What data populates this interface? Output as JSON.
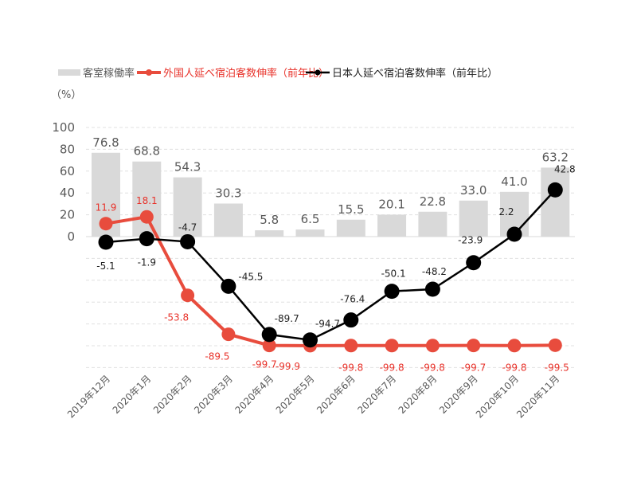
{
  "chart_data": {
    "type": "bar+line",
    "unit_label": "（%）",
    "categories": [
      "2019年12月",
      "2020年1月",
      "2020年2月",
      "2020年3月",
      "2020年4月",
      "2020年5月",
      "2020年6月",
      "2020年7月",
      "2020年8月",
      "2020年9月",
      "2020年10月",
      "2020年11月"
    ],
    "y_ticks": [
      "100",
      "80",
      "60",
      "40",
      "20",
      "0"
    ],
    "ylim": [
      -120,
      100
    ],
    "grid": true,
    "legend_position": "top",
    "series": [
      {
        "name": "客室稼働率",
        "type": "bar",
        "color": "#d9d9d9",
        "values": [
          76.8,
          68.8,
          54.3,
          30.3,
          5.8,
          6.5,
          15.5,
          20.1,
          22.8,
          33.0,
          41.0,
          63.2
        ],
        "labels": [
          "76.8",
          "68.8",
          "54.3",
          "30.3",
          "5.8",
          "6.5",
          "15.5",
          "20.1",
          "22.8",
          "33.0",
          "41.0",
          "63.2"
        ]
      },
      {
        "name": "外国人延べ宿泊客数伸率（前年比）",
        "type": "line",
        "color": "#e84c3d",
        "values": [
          11.9,
          18.1,
          -53.8,
          -89.5,
          -99.7,
          -99.9,
          -99.8,
          -99.8,
          -99.8,
          -99.7,
          -99.8,
          -99.5
        ],
        "labels": [
          "11.9",
          "18.1",
          "-53.8",
          "-89.5",
          "-99.7",
          "-99.9",
          "-99.8",
          "-99.8",
          "-99.8",
          "-99.7",
          "-99.8",
          "-99.5"
        ]
      },
      {
        "name": "日本人延べ宿泊客数伸率（前年比）",
        "type": "line",
        "color": "#000000",
        "values": [
          -5.1,
          -1.9,
          -4.7,
          -45.5,
          -89.7,
          -94.7,
          -76.4,
          -50.1,
          -48.2,
          -23.9,
          2.2,
          42.8
        ],
        "labels": [
          "-5.1",
          "-1.9",
          "-4.7",
          "-45.5",
          "-89.7",
          "-94.7",
          "-76.4",
          "-50.1",
          "-48.2",
          "-23.9",
          "2.2",
          "42.8"
        ]
      }
    ]
  }
}
